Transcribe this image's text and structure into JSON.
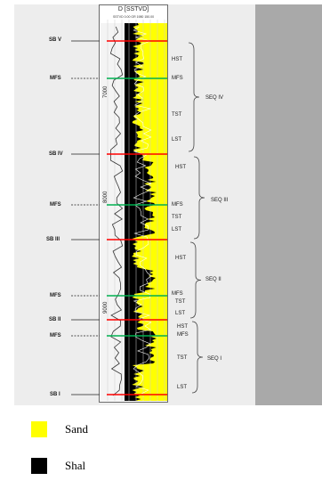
{
  "track": {
    "title": "D [SSTVD]",
    "sublabel": "SSTVD 0.00 GR 1980 150.00",
    "depth_labels": [
      "7000",
      "8000",
      "9000"
    ]
  },
  "surfaces": [
    {
      "label": "SB V",
      "type": "SB",
      "right": ""
    },
    {
      "label": "MFS",
      "type": "MFS",
      "right": "MFS"
    },
    {
      "label": "SB IV",
      "type": "SB",
      "right": ""
    },
    {
      "label": "MFS",
      "type": "MFS",
      "right": "MFS"
    },
    {
      "label": "SB III",
      "type": "SB",
      "right": ""
    },
    {
      "label": "MFS",
      "type": "MFS",
      "right": "MFS"
    },
    {
      "label": "SB II",
      "type": "SB",
      "right": ""
    },
    {
      "label": "MFS",
      "type": "MFS",
      "right": "MFS"
    },
    {
      "label": "SB I",
      "type": "SB",
      "right": ""
    }
  ],
  "tracts": [
    "HST",
    "TST",
    "LST",
    "HST",
    "TST",
    "LST",
    "HST",
    "TST",
    "LST",
    "HST",
    "TST",
    "LST"
  ],
  "sequences": [
    "SEQ IV",
    "SEQ III",
    "SEQ II",
    "SEQ I"
  ],
  "colors": {
    "sand": "#ffff00",
    "shale": "#000000",
    "sb_line": "#ff0000",
    "mfs_line": "#00b050"
  },
  "legend": [
    {
      "label": "Sand",
      "color": "#ffff00"
    },
    {
      "label": "Shal",
      "color": "#000000"
    }
  ]
}
